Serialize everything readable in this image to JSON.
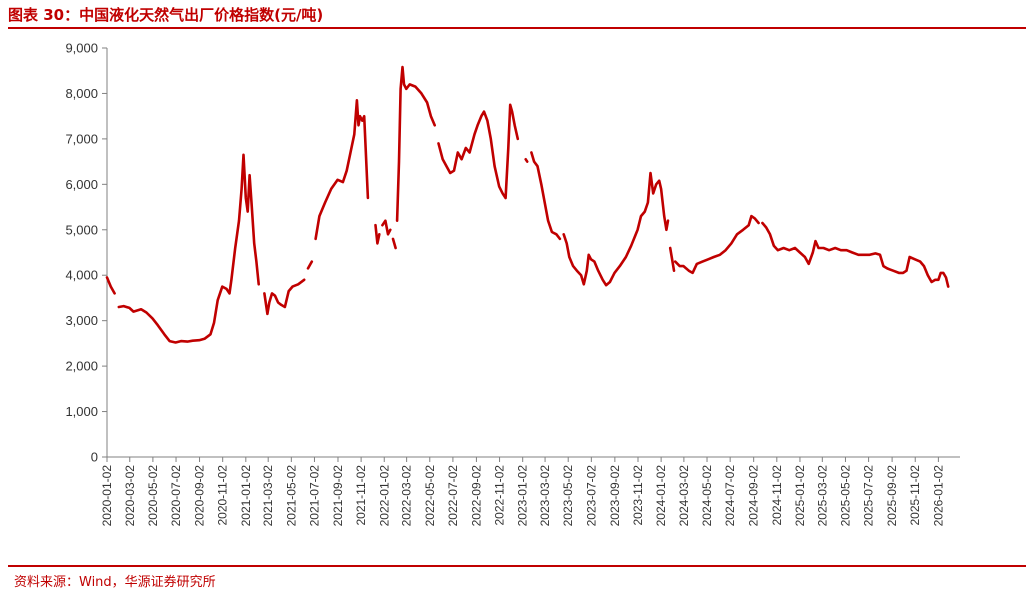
{
  "figure": {
    "title": "图表 30：中国液化天然气出厂价格指数(元/吨)",
    "source": "资料来源：Wind，华源证券研究所"
  },
  "colors": {
    "accent": "#c00000",
    "line": "#c00000",
    "axis": "#808080"
  },
  "chart_data": {
    "type": "line",
    "title": "",
    "xlabel": "",
    "ylabel": "",
    "ylim": [
      0,
      9000
    ],
    "xlim": [
      "2020-01-02",
      "2026-02-28"
    ],
    "grid": false,
    "legend": "none",
    "y_ticks": [
      "0",
      "1,000",
      "2,000",
      "3,000",
      "4,000",
      "5,000",
      "6,000",
      "7,000",
      "8,000",
      "9,000"
    ],
    "x_ticks": [
      "2020-01-02",
      "2020-03-02",
      "2020-05-02",
      "2020-07-02",
      "2020-09-02",
      "2020-11-02",
      "2021-01-02",
      "2021-03-02",
      "2021-05-02",
      "2021-07-02",
      "2021-09-02",
      "2021-11-02",
      "2022-01-02",
      "2022-03-02",
      "2022-05-02",
      "2022-07-02",
      "2022-09-02",
      "2022-11-02",
      "2023-01-02",
      "2023-03-02",
      "2023-05-02",
      "2023-07-02",
      "2023-09-02",
      "2023-11-02",
      "2024-01-02",
      "2024-03-02",
      "2024-05-02",
      "2024-07-02",
      "2024-09-02",
      "2024-11-02",
      "2025-01-02",
      "2025-03-02",
      "2025-05-02",
      "2025-07-02",
      "2025-09-02",
      "2025-11-02",
      "2026-01-02"
    ],
    "series": [
      {
        "name": "",
        "segments": [
          [
            [
              "2020-01-02",
              3950
            ],
            [
              "2020-01-12",
              3750
            ],
            [
              "2020-01-22",
              3600
            ]
          ],
          [
            [
              "2020-02-02",
              3300
            ],
            [
              "2020-02-15",
              3320
            ],
            [
              "2020-03-01",
              3280
            ],
            [
              "2020-03-12",
              3200
            ],
            [
              "2020-04-01",
              3250
            ],
            [
              "2020-04-15",
              3180
            ],
            [
              "2020-05-01",
              3050
            ],
            [
              "2020-05-15",
              2900
            ],
            [
              "2020-06-01",
              2700
            ],
            [
              "2020-06-15",
              2550
            ],
            [
              "2020-07-01",
              2520
            ],
            [
              "2020-07-15",
              2550
            ],
            [
              "2020-08-01",
              2540
            ],
            [
              "2020-08-15",
              2560
            ],
            [
              "2020-09-01",
              2570
            ],
            [
              "2020-09-15",
              2600
            ],
            [
              "2020-10-01",
              2700
            ],
            [
              "2020-10-10",
              2950
            ],
            [
              "2020-10-20",
              3450
            ],
            [
              "2020-11-01",
              3750
            ],
            [
              "2020-11-12",
              3700
            ],
            [
              "2020-11-20",
              3600
            ],
            [
              "2020-11-25",
              3900
            ],
            [
              "2020-12-05",
              4600
            ],
            [
              "2020-12-15",
              5200
            ],
            [
              "2020-12-22",
              5900
            ],
            [
              "2020-12-27",
              6650
            ],
            [
              "2021-01-02",
              5700
            ],
            [
              "2021-01-07",
              5400
            ],
            [
              "2021-01-12",
              6200
            ],
            [
              "2021-01-17",
              5600
            ],
            [
              "2021-01-24",
              4700
            ],
            [
              "2021-01-30",
              4300
            ],
            [
              "2021-02-05",
              3800
            ]
          ],
          [
            [
              "2021-02-20",
              3600
            ],
            [
              "2021-02-28",
              3150
            ],
            [
              "2021-03-05",
              3400
            ],
            [
              "2021-03-12",
              3600
            ],
            [
              "2021-03-20",
              3550
            ],
            [
              "2021-03-28",
              3400
            ],
            [
              "2021-04-05",
              3350
            ],
            [
              "2021-04-15",
              3300
            ],
            [
              "2021-04-25",
              3650
            ],
            [
              "2021-05-05",
              3750
            ],
            [
              "2021-05-20",
              3800
            ],
            [
              "2021-06-05",
              3900
            ]
          ],
          [
            [
              "2021-06-15",
              4150
            ],
            [
              "2021-06-25",
              4300
            ]
          ],
          [
            [
              "2021-07-05",
              4800
            ],
            [
              "2021-07-15",
              5300
            ],
            [
              "2021-07-30",
              5600
            ],
            [
              "2021-08-15",
              5900
            ],
            [
              "2021-09-01",
              6100
            ],
            [
              "2021-09-15",
              6050
            ],
            [
              "2021-09-25",
              6300
            ],
            [
              "2021-10-05",
              6700
            ],
            [
              "2021-10-15",
              7100
            ],
            [
              "2021-10-22",
              7850
            ],
            [
              "2021-10-26",
              7300
            ],
            [
              "2021-10-30",
              7500
            ],
            [
              "2021-11-05",
              7400
            ],
            [
              "2021-11-10",
              7500
            ],
            [
              "2021-11-20",
              5700
            ]
          ],
          [
            [
              "2021-12-10",
              5100
            ],
            [
              "2021-12-15",
              4700
            ],
            [
              "2021-12-20",
              4900
            ]
          ],
          [
            [
              "2021-12-28",
              5100
            ],
            [
              "2022-01-05",
              5200
            ],
            [
              "2022-01-12",
              4900
            ],
            [
              "2022-01-18",
              5000
            ]
          ],
          [
            [
              "2022-01-25",
              4800
            ],
            [
              "2022-02-01",
              4600
            ]
          ],
          [
            [
              "2022-02-05",
              5200
            ],
            [
              "2022-02-10",
              6500
            ],
            [
              "2022-02-14",
              8100
            ],
            [
              "2022-02-19",
              8580
            ],
            [
              "2022-02-23",
              8200
            ],
            [
              "2022-03-01",
              8100
            ],
            [
              "2022-03-10",
              8200
            ],
            [
              "2022-03-25",
              8150
            ],
            [
              "2022-04-10",
              8000
            ],
            [
              "2022-04-25",
              7800
            ],
            [
              "2022-05-05",
              7500
            ],
            [
              "2022-05-15",
              7300
            ]
          ],
          [
            [
              "2022-05-25",
              6900
            ],
            [
              "2022-06-05",
              6550
            ],
            [
              "2022-06-15",
              6400
            ],
            [
              "2022-06-25",
              6250
            ],
            [
              "2022-07-05",
              6300
            ],
            [
              "2022-07-15",
              6700
            ],
            [
              "2022-07-25",
              6550
            ],
            [
              "2022-08-05",
              6800
            ],
            [
              "2022-08-15",
              6700
            ],
            [
              "2022-08-28",
              7100
            ],
            [
              "2022-09-05",
              7300
            ],
            [
              "2022-09-15",
              7500
            ],
            [
              "2022-09-22",
              7600
            ],
            [
              "2022-10-01",
              7400
            ],
            [
              "2022-10-10",
              7000
            ],
            [
              "2022-10-20",
              6400
            ],
            [
              "2022-11-01",
              5950
            ],
            [
              "2022-11-10",
              5800
            ],
            [
              "2022-11-18",
              5700
            ],
            [
              "2022-11-25",
              6800
            ],
            [
              "2022-11-30",
              7750
            ],
            [
              "2022-12-05",
              7600
            ],
            [
              "2022-12-12",
              7300
            ],
            [
              "2022-12-20",
              7000
            ]
          ],
          [
            [
              "2023-01-10",
              6550
            ],
            [
              "2023-01-14",
              6500
            ]
          ],
          [
            [
              "2023-01-25",
              6700
            ],
            [
              "2023-02-01",
              6500
            ],
            [
              "2023-02-10",
              6400
            ],
            [
              "2023-02-20",
              6000
            ],
            [
              "2023-03-01",
              5600
            ],
            [
              "2023-03-10",
              5200
            ],
            [
              "2023-03-20",
              4950
            ],
            [
              "2023-04-01",
              4900
            ],
            [
              "2023-04-10",
              4800
            ]
          ],
          [
            [
              "2023-04-20",
              4900
            ],
            [
              "2023-04-28",
              4700
            ],
            [
              "2023-05-05",
              4400
            ],
            [
              "2023-05-15",
              4200
            ],
            [
              "2023-05-25",
              4100
            ],
            [
              "2023-06-05",
              4000
            ],
            [
              "2023-06-12",
              3800
            ],
            [
              "2023-06-20",
              4100
            ],
            [
              "2023-06-25",
              4450
            ],
            [
              "2023-07-01",
              4350
            ],
            [
              "2023-07-10",
              4300
            ],
            [
              "2023-07-20",
              4100
            ],
            [
              "2023-08-01",
              3900
            ],
            [
              "2023-08-10",
              3780
            ],
            [
              "2023-08-20",
              3850
            ],
            [
              "2023-09-01",
              4050
            ],
            [
              "2023-09-15",
              4200
            ],
            [
              "2023-10-01",
              4400
            ],
            [
              "2023-10-15",
              4650
            ],
            [
              "2023-11-01",
              5000
            ],
            [
              "2023-11-10",
              5300
            ],
            [
              "2023-11-20",
              5400
            ],
            [
              "2023-11-28",
              5600
            ],
            [
              "2023-12-05",
              6250
            ],
            [
              "2023-12-12",
              5800
            ],
            [
              "2023-12-20",
              6000
            ],
            [
              "2023-12-28",
              6080
            ],
            [
              "2024-01-02",
              5900
            ],
            [
              "2024-01-10",
              5300
            ],
            [
              "2024-01-16",
              5000
            ],
            [
              "2024-01-20",
              5200
            ]
          ],
          [
            [
              "2024-01-26",
              4600
            ],
            [
              "2024-02-01",
              4300
            ],
            [
              "2024-02-05",
              4100
            ]
          ],
          [
            [
              "2024-02-08",
              4300
            ],
            [
              "2024-02-20",
              4200
            ],
            [
              "2024-03-01",
              4200
            ],
            [
              "2024-03-15",
              4100
            ],
            [
              "2024-03-25",
              4050
            ],
            [
              "2024-04-05",
              4250
            ],
            [
              "2024-04-20",
              4300
            ],
            [
              "2024-05-05",
              4350
            ],
            [
              "2024-05-20",
              4400
            ],
            [
              "2024-06-05",
              4450
            ],
            [
              "2024-06-20",
              4550
            ],
            [
              "2024-07-05",
              4700
            ],
            [
              "2024-07-20",
              4900
            ],
            [
              "2024-08-05",
              5000
            ],
            [
              "2024-08-20",
              5100
            ],
            [
              "2024-08-27",
              5300
            ],
            [
              "2024-09-05",
              5250
            ],
            [
              "2024-09-15",
              5150
            ]
          ],
          [
            [
              "2024-09-25",
              5150
            ],
            [
              "2024-10-05",
              5050
            ],
            [
              "2024-10-15",
              4900
            ],
            [
              "2024-10-25",
              4650
            ],
            [
              "2024-11-05",
              4550
            ],
            [
              "2024-11-20",
              4600
            ],
            [
              "2024-12-05",
              4550
            ],
            [
              "2024-12-20",
              4600
            ],
            [
              "2025-01-02",
              4500
            ],
            [
              "2025-01-15",
              4400
            ],
            [
              "2025-01-25",
              4250
            ],
            [
              "2025-02-05",
              4500
            ],
            [
              "2025-02-12",
              4750
            ],
            [
              "2025-02-20",
              4600
            ],
            [
              "2025-03-05",
              4600
            ],
            [
              "2025-03-20",
              4550
            ],
            [
              "2025-04-05",
              4600
            ],
            [
              "2025-04-20",
              4550
            ],
            [
              "2025-05-05",
              4550
            ],
            [
              "2025-05-20",
              4500
            ],
            [
              "2025-06-05",
              4450
            ],
            [
              "2025-06-20",
              4450
            ],
            [
              "2025-07-05",
              4450
            ],
            [
              "2025-07-20",
              4480
            ],
            [
              "2025-08-01",
              4450
            ],
            [
              "2025-08-10",
              4200
            ],
            [
              "2025-08-20",
              4150
            ],
            [
              "2025-09-05",
              4100
            ],
            [
              "2025-09-20",
              4050
            ],
            [
              "2025-10-01",
              4050
            ],
            [
              "2025-10-10",
              4100
            ],
            [
              "2025-10-18",
              4400
            ],
            [
              "2025-11-01",
              4350
            ],
            [
              "2025-11-15",
              4300
            ],
            [
              "2025-11-25",
              4200
            ],
            [
              "2025-12-05",
              4000
            ],
            [
              "2025-12-15",
              3850
            ],
            [
              "2025-12-25",
              3900
            ],
            [
              "2026-01-02",
              3900
            ],
            [
              "2026-01-08",
              4050
            ],
            [
              "2026-01-15",
              4050
            ],
            [
              "2026-01-22",
              3950
            ],
            [
              "2026-01-28",
              3750
            ]
          ]
        ]
      }
    ]
  }
}
